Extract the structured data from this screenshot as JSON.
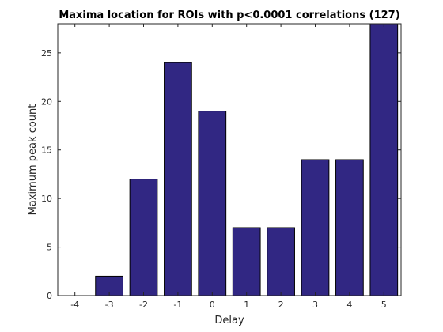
{
  "chart_data": {
    "type": "bar",
    "title": "Maxima location for ROIs with p<0.0001 correlations (127)",
    "xlabel": "Delay",
    "ylabel": "Maximum peak count",
    "categories": [
      "-4",
      "-3",
      "-2",
      "-1",
      "0",
      "1",
      "2",
      "3",
      "4",
      "5"
    ],
    "values": [
      0,
      2,
      12,
      24,
      19,
      7,
      7,
      14,
      14,
      28
    ],
    "ylim": [
      0,
      28
    ],
    "xlim": [
      -4.5,
      5.5
    ],
    "yticks": [
      "0",
      "5",
      "10",
      "15",
      "20",
      "25"
    ],
    "bar_color": "#312783",
    "edge_color": "#000000",
    "grid": false,
    "legend": "none"
  }
}
